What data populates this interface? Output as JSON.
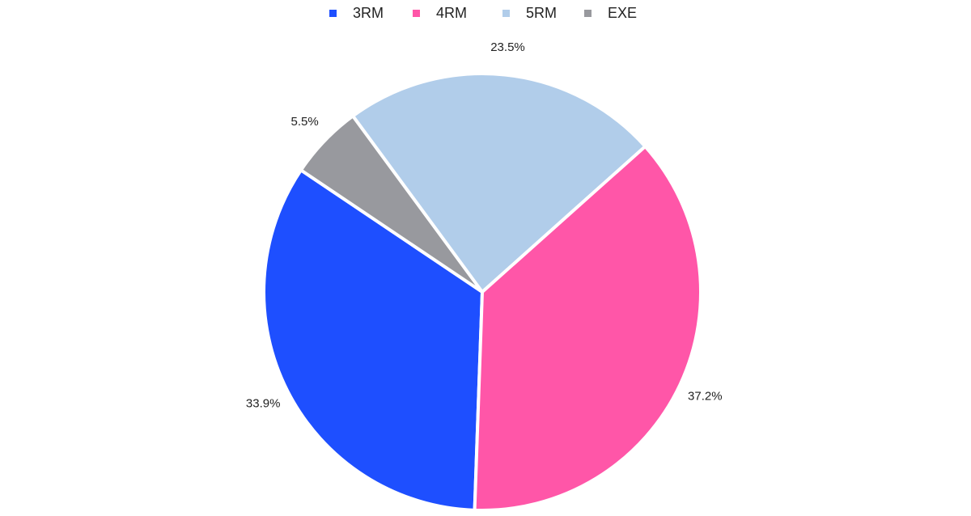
{
  "chart_data": {
    "type": "pie",
    "title": "",
    "legend_position": "top-center",
    "categories": [
      "3RM",
      "4RM",
      "5RM",
      "EXE"
    ],
    "values": [
      33.9,
      37.2,
      23.5,
      5.5
    ],
    "value_labels": [
      "33.9%",
      "37.2%",
      "23.5%",
      "5.5%"
    ],
    "colors": [
      "#1e4fff",
      "#ff56a8",
      "#b1cdea",
      "#98999e"
    ],
    "start_angle_deg": 2,
    "direction": "counterclockwise-from-bottom"
  }
}
